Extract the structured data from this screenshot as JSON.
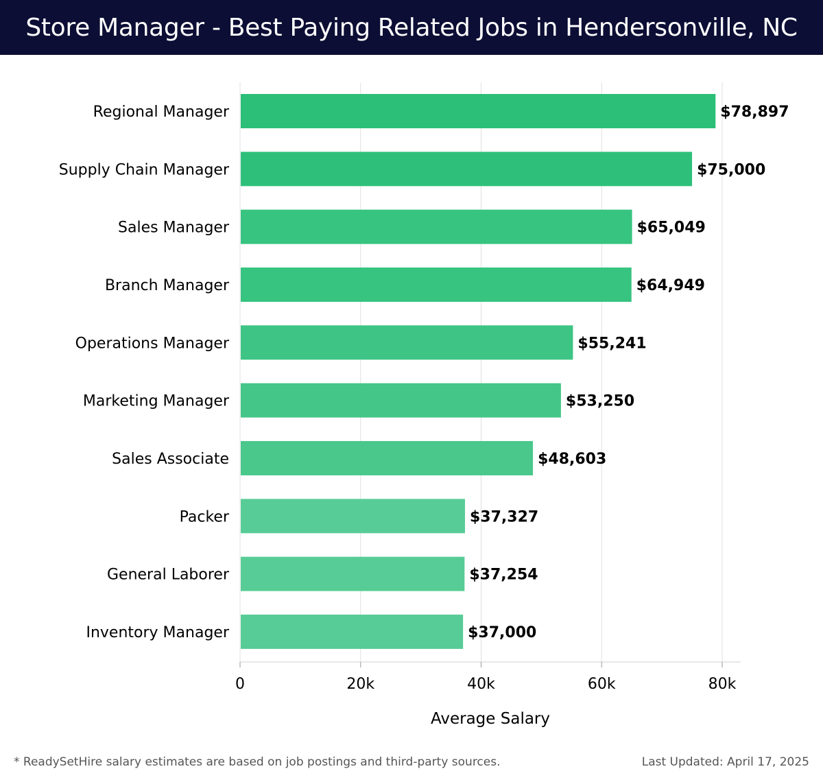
{
  "header": {
    "title": "Store Manager - Best Paying Related Jobs in Hendersonville, NC"
  },
  "colors": {
    "header_bg": "#0c0e35",
    "bar_colors": [
      "#2bbf78",
      "#2ec07a",
      "#37c380",
      "#37c380",
      "#3ec485",
      "#44c688",
      "#4ac78b",
      "#58cc96",
      "#58cc96",
      "#58cc96"
    ],
    "grid": "#e0e0e0",
    "text": "#000000"
  },
  "chart_data": {
    "type": "bar",
    "orientation": "horizontal",
    "categories": [
      "Regional Manager",
      "Supply Chain Manager",
      "Sales Manager",
      "Branch Manager",
      "Operations Manager",
      "Marketing Manager",
      "Sales Associate",
      "Packer",
      "General Laborer",
      "Inventory Manager"
    ],
    "values": [
      78897,
      75000,
      65049,
      64949,
      55241,
      53250,
      48603,
      37327,
      37254,
      37000
    ],
    "value_labels": [
      "$78,897",
      "$75,000",
      "$65,049",
      "$64,949",
      "$55,241",
      "$53,250",
      "$48,603",
      "$37,327",
      "$37,254",
      "$37,000"
    ],
    "xlabel": "Average Salary",
    "ylabel": "",
    "xlim": [
      0,
      83000
    ],
    "xticks": [
      0,
      20000,
      40000,
      60000,
      80000
    ],
    "xtick_labels": [
      "0",
      "20k",
      "40k",
      "60k",
      "80k"
    ],
    "grid": true
  },
  "footer": {
    "note": "* ReadySetHire salary estimates are based on job postings and third-party sources.",
    "updated_label": "Last Updated: April 17, 2025"
  }
}
